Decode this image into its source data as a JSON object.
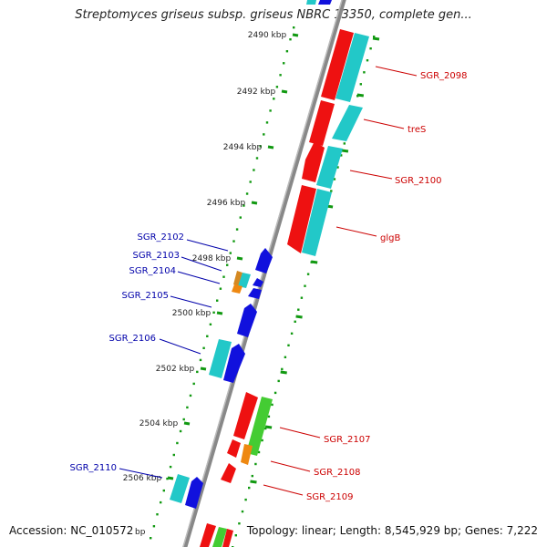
{
  "title": "Streptomyces griseus subsp. griseus NBRC 13350, complete gen...",
  "footer": {
    "accession": "Accession: NC_010572",
    "topology": "Topology: linear; Length: 8,545,929 bp; Genes: 7,222",
    "unit_fragment": "bp"
  },
  "ticks": [
    {
      "label": "2490 kbp",
      "kbp": 2490
    },
    {
      "label": "2492 kbp",
      "kbp": 2492
    },
    {
      "label": "2494 kbp",
      "kbp": 2494
    },
    {
      "label": "2496 kbp",
      "kbp": 2496
    },
    {
      "label": "2498 kbp",
      "kbp": 2498
    },
    {
      "label": "2500 kbp",
      "kbp": 2500
    },
    {
      "label": "2502 kbp",
      "kbp": 2502
    },
    {
      "label": "2504 kbp",
      "kbp": 2504
    },
    {
      "label": "2506 kbp",
      "kbp": 2506
    }
  ],
  "gene_labels": [
    {
      "text": "SGR_2098",
      "strand": "plus"
    },
    {
      "text": "treS",
      "strand": "plus"
    },
    {
      "text": "SGR_2100",
      "strand": "plus"
    },
    {
      "text": "glgB",
      "strand": "plus"
    },
    {
      "text": "SGR_2107",
      "strand": "plus"
    },
    {
      "text": "SGR_2108",
      "strand": "plus"
    },
    {
      "text": "SGR_2109",
      "strand": "plus"
    },
    {
      "text": "SGR_2102",
      "strand": "minus"
    },
    {
      "text": "SGR_2103",
      "strand": "minus"
    },
    {
      "text": "SGR_2104",
      "strand": "minus"
    },
    {
      "text": "SGR_2105",
      "strand": "minus"
    },
    {
      "text": "SGR_2106",
      "strand": "minus"
    },
    {
      "text": "SGR_2110",
      "strand": "minus"
    }
  ],
  "colors": {
    "plus_label": "#cc0000",
    "minus_label": "#0000aa",
    "red_gene": "#ee1111",
    "cyan_gene": "#22c8c8",
    "blue_gene": "#1111dd",
    "green_gene": "#44cc33",
    "orange_gene": "#ee8811",
    "tick_green": "#119911",
    "axis_gray": "#888888"
  }
}
